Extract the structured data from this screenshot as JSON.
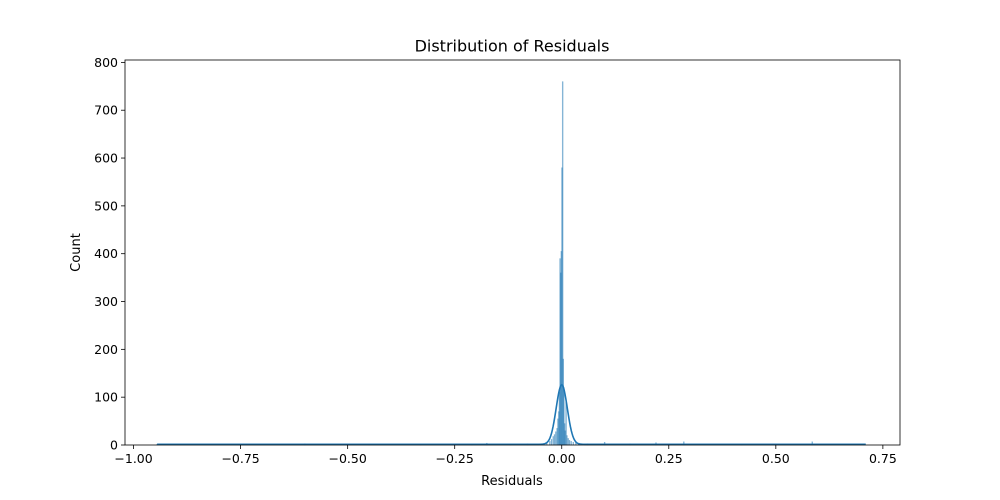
{
  "chart_data": {
    "type": "histogram",
    "title": "Distribution of Residuals",
    "xlabel": "Residuals",
    "ylabel": "Count",
    "xlim": [
      -1.02,
      0.79
    ],
    "ylim": [
      0,
      805
    ],
    "xticks": [
      -1.0,
      -0.75,
      -0.5,
      -0.25,
      0.0,
      0.25,
      0.5,
      0.75
    ],
    "xtick_labels": [
      "−1.00",
      "−0.75",
      "−0.50",
      "−0.25",
      "0.00",
      "0.25",
      "0.50",
      "0.75"
    ],
    "yticks": [
      0,
      100,
      200,
      300,
      400,
      500,
      600,
      700,
      800
    ],
    "ytick_labels": [
      "0",
      "100",
      "200",
      "300",
      "400",
      "500",
      "600",
      "700",
      "800"
    ],
    "bar_color": "#1f77b4",
    "kde_color": "#1f77b4",
    "bars": [
      {
        "x": -0.945,
        "count": 2
      },
      {
        "x": -0.6,
        "count": 3
      },
      {
        "x": -0.45,
        "count": 2
      },
      {
        "x": -0.33,
        "count": 2
      },
      {
        "x": -0.21,
        "count": 2
      },
      {
        "x": -0.175,
        "count": 4
      },
      {
        "x": -0.12,
        "count": 2
      },
      {
        "x": -0.08,
        "count": 3
      },
      {
        "x": -0.05,
        "count": 3
      },
      {
        "x": -0.035,
        "count": 5
      },
      {
        "x": -0.028,
        "count": 8
      },
      {
        "x": -0.024,
        "count": 12
      },
      {
        "x": -0.02,
        "count": 18
      },
      {
        "x": -0.017,
        "count": 22
      },
      {
        "x": -0.014,
        "count": 28
      },
      {
        "x": -0.011,
        "count": 35
      },
      {
        "x": -0.009,
        "count": 55
      },
      {
        "x": -0.007,
        "count": 70
      },
      {
        "x": -0.0055,
        "count": 110
      },
      {
        "x": -0.004,
        "count": 390
      },
      {
        "x": -0.0025,
        "count": 360
      },
      {
        "x": -0.001,
        "count": 405
      },
      {
        "x": 0.0005,
        "count": 580
      },
      {
        "x": 0.002,
        "count": 760
      },
      {
        "x": 0.0035,
        "count": 180
      },
      {
        "x": 0.005,
        "count": 120
      },
      {
        "x": 0.0065,
        "count": 45
      },
      {
        "x": 0.008,
        "count": 30
      },
      {
        "x": 0.01,
        "count": 90
      },
      {
        "x": 0.012,
        "count": 20
      },
      {
        "x": 0.015,
        "count": 14
      },
      {
        "x": 0.018,
        "count": 10
      },
      {
        "x": 0.022,
        "count": 8
      },
      {
        "x": 0.027,
        "count": 6
      },
      {
        "x": 0.033,
        "count": 5
      },
      {
        "x": 0.04,
        "count": 4
      },
      {
        "x": 0.06,
        "count": 3
      },
      {
        "x": 0.1,
        "count": 6
      },
      {
        "x": 0.16,
        "count": 3
      },
      {
        "x": 0.22,
        "count": 5
      },
      {
        "x": 0.285,
        "count": 7
      },
      {
        "x": 0.42,
        "count": 2
      },
      {
        "x": 0.585,
        "count": 7
      },
      {
        "x": 0.705,
        "count": 2
      }
    ],
    "kde": {
      "peak_x": 0.0,
      "peak_y": 126,
      "sigma": 0.013,
      "tail_height": 1.5,
      "x_range": [
        -0.945,
        0.71
      ]
    }
  }
}
